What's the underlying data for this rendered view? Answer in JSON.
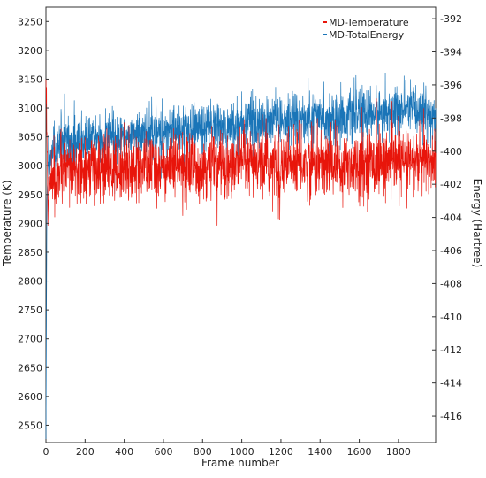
{
  "chart_data": {
    "type": "line",
    "xlabel": "Frame number",
    "ylabel_left": "Temperature (K)",
    "ylabel_right": "Energy (Hartree)",
    "xlim": [
      0,
      1990
    ],
    "ylim_left": [
      2520,
      3275
    ],
    "ylim_right": [
      -417.6,
      -391.3
    ],
    "x_ticks": [
      0,
      200,
      400,
      600,
      800,
      1000,
      1200,
      1400,
      1600,
      1800
    ],
    "y_left_ticks": [
      2550,
      2600,
      2650,
      2700,
      2750,
      2800,
      2850,
      2900,
      2950,
      3000,
      3050,
      3100,
      3150,
      3200,
      3250
    ],
    "y_right_ticks": [
      -416,
      -414,
      -412,
      -410,
      -408,
      -406,
      -404,
      -402,
      -400,
      -398,
      -396,
      -394,
      -392
    ],
    "grid": false,
    "legend_position": "top-right",
    "series": [
      {
        "name": "MD-Temperature",
        "axis": "left",
        "color": "#e8150b",
        "x": [
          0,
          10,
          30,
          60,
          100,
          150,
          200,
          300,
          400,
          500,
          600,
          700,
          800,
          900,
          1000,
          1100,
          1200,
          1300,
          1400,
          1500,
          1600,
          1700,
          1800,
          1900,
          1990
        ],
        "values": [
          3150,
          2940,
          2975,
          2985,
          2990,
          2992,
          2993,
          2995,
          2996,
          2997,
          2998,
          2998,
          2999,
          3000,
          3000,
          3001,
          3001,
          3002,
          3003,
          3003,
          3004,
          3004,
          3005,
          3006,
          3008
        ]
      },
      {
        "name": "MD-TotalEnergy",
        "axis": "right",
        "color": "#1a75b8",
        "x": [
          0,
          5,
          10,
          30,
          60,
          100,
          200,
          300,
          400,
          500,
          600,
          700,
          800,
          900,
          1000,
          1100,
          1200,
          1300,
          1400,
          1500,
          1600,
          1700,
          1800,
          1900,
          1990
        ],
        "values": [
          -417.5,
          -403,
          -401,
          -399.8,
          -399.7,
          -399.5,
          -399.3,
          -399.1,
          -399.0,
          -398.9,
          -398.8,
          -398.7,
          -398.6,
          -398.5,
          -398.4,
          -398.3,
          -398.2,
          -398.1,
          -398.0,
          -397.9,
          -397.8,
          -397.7,
          -397.6,
          -397.5,
          -398.0
        ]
      }
    ]
  }
}
